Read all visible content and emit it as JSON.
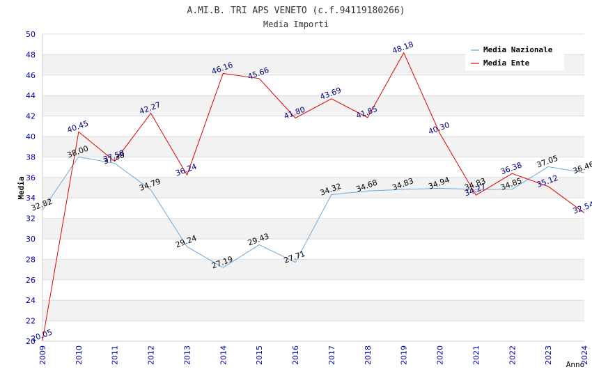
{
  "chart_data": {
    "type": "line",
    "title": "A.MI.B. TRI APS VENETO (c.f.94119180266)",
    "subtitle": "Media Importi",
    "xlabel": "Anno",
    "ylabel": "Media",
    "ylim": [
      20,
      50
    ],
    "yticks": [
      "20",
      "22",
      "24",
      "26",
      "28",
      "30",
      "32",
      "34",
      "36",
      "38",
      "40",
      "42",
      "44",
      "46",
      "48",
      "50"
    ],
    "categories": [
      "2009",
      "2010",
      "2011",
      "2012",
      "2013",
      "2014",
      "2015",
      "2016",
      "2017",
      "2018",
      "2019",
      "2020",
      "2021",
      "2022",
      "2023",
      "2024"
    ],
    "grid": true,
    "legend_position": "top-right",
    "series": [
      {
        "name": "Media Nazionale",
        "color": "#6fa8dc",
        "values": [
          32.82,
          38.0,
          37.38,
          34.79,
          29.24,
          27.19,
          29.43,
          27.71,
          34.32,
          34.68,
          34.83,
          34.94,
          34.83,
          34.85,
          37.05,
          36.46
        ],
        "labels": [
          "32.82",
          "38.00",
          "37.38",
          "34.79",
          "29.24",
          "27.19",
          "29.43",
          "27.71",
          "34.32",
          "34.68",
          "34.83",
          "34.94",
          "34.83",
          "34.85",
          "37.05",
          "36.46"
        ]
      },
      {
        "name": "Media Ente",
        "color": "#e00000",
        "values": [
          20.05,
          40.45,
          37.58,
          42.27,
          36.24,
          46.16,
          45.66,
          41.8,
          43.69,
          41.85,
          48.18,
          40.3,
          34.27,
          36.38,
          35.12,
          32.54
        ],
        "labels": [
          "20.05",
          "40.45",
          "37.58",
          "42.27",
          "36.24",
          "46.16",
          "45.66",
          "41.80",
          "43.69",
          "41.85",
          "48.18",
          "40.30",
          "34.27",
          "36.38",
          "35.12",
          "32.54"
        ]
      }
    ]
  }
}
